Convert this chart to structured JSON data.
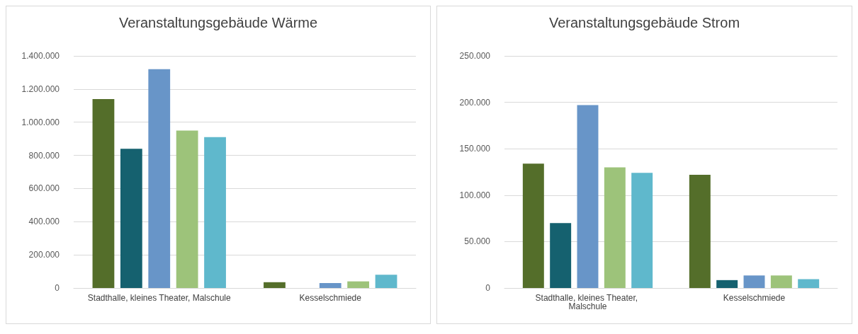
{
  "chart_data": [
    {
      "type": "bar",
      "title": "Veranstaltungsgebäude Wärme",
      "categories": [
        "Stadthalle, kleines Theater, Malschule",
        "Kesselschmiede"
      ],
      "series": [
        {
          "color": "#546e2a",
          "values": [
            1140000,
            35000
          ]
        },
        {
          "color": "#15616f",
          "values": [
            840000,
            null
          ]
        },
        {
          "color": "#6895c8",
          "values": [
            1320000,
            30000
          ]
        },
        {
          "color": "#9dc37a",
          "values": [
            950000,
            40000
          ]
        },
        {
          "color": "#5fb8cc",
          "values": [
            910000,
            80000
          ]
        }
      ],
      "ylim": [
        0,
        1400000
      ],
      "yticks": [
        {
          "value": 0,
          "label": "0"
        },
        {
          "value": 200000,
          "label": "200.000"
        },
        {
          "value": 400000,
          "label": "400.000"
        },
        {
          "value": 600000,
          "label": "600.000"
        },
        {
          "value": 800000,
          "label": "800.000"
        },
        {
          "value": 1000000,
          "label": "1.000.000"
        },
        {
          "value": 1200000,
          "label": "1.200.000"
        },
        {
          "value": 1400000,
          "label": "1.400.000"
        }
      ],
      "grid": "y"
    },
    {
      "type": "bar",
      "title": "Veranstaltungsgebäude Strom",
      "categories": [
        "Stadthalle, kleines Theater, Malschule",
        "Kesselschmiede"
      ],
      "series": [
        {
          "color": "#546e2a",
          "values": [
            134000,
            122000
          ]
        },
        {
          "color": "#15616f",
          "values": [
            70000,
            8500
          ]
        },
        {
          "color": "#6895c8",
          "values": [
            197000,
            13500
          ]
        },
        {
          "color": "#9dc37a",
          "values": [
            130000,
            13500
          ]
        },
        {
          "color": "#5fb8cc",
          "values": [
            124000,
            9500
          ]
        }
      ],
      "ylim": [
        0,
        250000
      ],
      "yticks": [
        {
          "value": 0,
          "label": "0"
        },
        {
          "value": 50000,
          "label": "50.000"
        },
        {
          "value": 100000,
          "label": "100.000"
        },
        {
          "value": 150000,
          "label": "150.000"
        },
        {
          "value": 200000,
          "label": "200.000"
        },
        {
          "value": 250000,
          "label": "250.000"
        }
      ],
      "grid": "y"
    }
  ]
}
